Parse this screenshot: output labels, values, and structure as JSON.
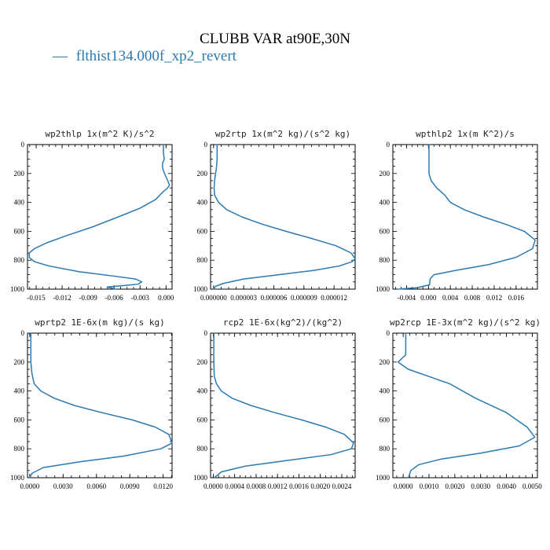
{
  "page": {
    "title": "CLUBB VAR at90E,30N",
    "legend": [
      {
        "marker": "—",
        "label": "flthist134.000f_xp2_revert",
        "color": "#2a7ab0"
      }
    ]
  },
  "colors": {
    "series": "#2a7ab0",
    "axes": "#000000"
  },
  "chart_data": [
    {
      "type": "line",
      "title": "wp2thlp  1x(m^2 K)/s^2",
      "xlim": [
        -0.016,
        0.0007
      ],
      "ylim": [
        1000,
        0
      ],
      "xticks": [
        -0.015,
        -0.012,
        -0.009,
        -0.006,
        -0.003,
        0.0
      ],
      "xtick_labels": [
        "-0.015",
        "-0.012",
        "-0.009",
        "-0.006",
        "-0.003",
        "0.000"
      ],
      "yticks": [
        0,
        200,
        400,
        600,
        800,
        1000
      ],
      "ytick_labels": [
        "0",
        "200",
        "400",
        "600",
        "800",
        "1000"
      ],
      "series": [
        {
          "x": [
            -0.0003,
            -0.0003,
            -0.0002,
            -0.0004,
            -0.0004,
            -0.0003,
            -0.0001,
            0.0002,
            0.0004,
            0.0002,
            -0.0004,
            -0.0012,
            -0.003,
            -0.0055,
            -0.0085,
            -0.0115,
            -0.0138,
            -0.0152,
            -0.0158,
            -0.0158,
            -0.0152,
            -0.0135,
            -0.01,
            -0.006,
            -0.0035,
            -0.0028,
            -0.0032,
            -0.0048,
            -0.0068,
            -0.0058
          ],
          "y": [
            0,
            60,
            100,
            130,
            160,
            180,
            210,
            250,
            280,
            300,
            330,
            380,
            440,
            500,
            570,
            630,
            680,
            720,
            750,
            780,
            810,
            840,
            880,
            910,
            930,
            950,
            965,
            975,
            985,
            1000
          ]
        }
      ]
    },
    {
      "type": "line",
      "title": "wp2rtp  1x(m^2 kg)/(s^2 kg)",
      "xlim": [
        -3e-07,
        1.41e-05
      ],
      "ylim": [
        1000,
        0
      ],
      "xticks": [
        0.0,
        3e-06,
        6e-06,
        9e-06,
        1.2e-05
      ],
      "xtick_labels": [
        "0.000000",
        "0.000003",
        "0.000006",
        "0.000009",
        "0.000012"
      ],
      "yticks": [
        0,
        200,
        400,
        600,
        800,
        1000
      ],
      "ytick_labels": [
        "0",
        "200",
        "400",
        "600",
        "800",
        "1000"
      ],
      "series": [
        {
          "x": [
            3.5e-07,
            3.5e-07,
            3e-07,
            2e-07,
            1e-07,
            5e-08,
            1e-07,
            5e-07,
            1.3e-06,
            2.8e-06,
            4.8e-06,
            7.2e-06,
            9.8e-06,
            1.22e-05,
            1.37e-05,
            1.41e-05,
            1.38e-05,
            1.25e-05,
            1e-05,
            6.5e-06,
            3e-06,
            1e-06,
            2e-07,
            0.0
          ],
          "y": [
            0,
            100,
            150,
            200,
            250,
            300,
            350,
            400,
            450,
            500,
            550,
            600,
            650,
            700,
            750,
            790,
            810,
            840,
            870,
            900,
            930,
            960,
            980,
            1000
          ]
        }
      ]
    },
    {
      "type": "line",
      "title": "wpthlp2  1x(m K^2)/s",
      "xlim": [
        -0.0065,
        0.0199
      ],
      "ylim": [
        1000,
        0
      ],
      "xticks": [
        -0.004,
        0.0,
        0.004,
        0.008,
        0.012,
        0.016
      ],
      "xtick_labels": [
        "-0.004",
        "0.000",
        "0.004",
        "0.008",
        "0.012",
        "0.016"
      ],
      "yticks": [
        0,
        200,
        400,
        600,
        800,
        1000
      ],
      "ytick_labels": [
        "0",
        "200",
        "400",
        "600",
        "800",
        "1000"
      ],
      "series": [
        {
          "x": [
            0.0001,
            0.0001,
            0.0001,
            0.0005,
            0.0015,
            0.003,
            0.004,
            0.0065,
            0.01,
            0.014,
            0.0175,
            0.0195,
            0.019,
            0.016,
            0.011,
            0.005,
            0.001,
            0.0003,
            0.0002,
            -0.002,
            -0.0055
          ],
          "y": [
            0,
            100,
            200,
            250,
            300,
            350,
            400,
            450,
            500,
            550,
            600,
            660,
            720,
            780,
            830,
            870,
            900,
            930,
            970,
            990,
            1000
          ]
        }
      ]
    },
    {
      "type": "line",
      "title": "wprtp2  1E-6x(m kg)/(s kg)",
      "xlim": [
        -0.0002,
        0.0128
      ],
      "ylim": [
        1000,
        0
      ],
      "xticks": [
        0.0,
        0.003,
        0.006,
        0.009,
        0.012
      ],
      "xtick_labels": [
        "0.0000",
        "0.0030",
        "0.0060",
        "0.0090",
        "0.0120"
      ],
      "yticks": [
        0,
        200,
        400,
        600,
        800,
        1000
      ],
      "ytick_labels": [
        "0",
        "200",
        "400",
        "600",
        "800",
        "1000"
      ],
      "series": [
        {
          "x": [
            0.0001,
            0.0001,
            0.0001,
            0.0002,
            0.0004,
            0.001,
            0.0022,
            0.004,
            0.0065,
            0.0092,
            0.0113,
            0.0125,
            0.0128,
            0.0118,
            0.0085,
            0.0045,
            0.0012,
            0.0002,
            0.0
          ],
          "y": [
            0,
            100,
            200,
            280,
            350,
            400,
            450,
            500,
            550,
            600,
            650,
            700,
            760,
            800,
            850,
            890,
            930,
            970,
            1000
          ]
        }
      ]
    },
    {
      "type": "line",
      "title": "rcp2  1E-6x(kg^2)/(kg^2)",
      "xlim": [
        -5e-05,
        0.00265
      ],
      "ylim": [
        1000,
        0
      ],
      "xticks": [
        0.0,
        0.0004,
        0.0008,
        0.0012,
        0.0016,
        0.002,
        0.0024
      ],
      "xtick_labels": [
        "0.0000",
        "0.0004",
        "0.0008",
        "0.0012",
        "0.0016",
        "0.0020",
        "0.0024"
      ],
      "yticks": [
        0,
        200,
        400,
        600,
        800,
        1000
      ],
      "ytick_labels": [
        "0",
        "200",
        "400",
        "600",
        "800",
        "1000"
      ],
      "series": [
        {
          "x": [
            1e-05,
            1e-05,
            1e-05,
            2e-05,
            6e-05,
            0.00015,
            0.00035,
            0.0007,
            0.00115,
            0.00165,
            0.0021,
            0.00245,
            0.00262,
            0.00258,
            0.0022,
            0.0014,
            0.0006,
            0.00015,
            2e-05
          ],
          "y": [
            0,
            100,
            200,
            300,
            350,
            400,
            450,
            500,
            550,
            600,
            650,
            700,
            760,
            800,
            840,
            880,
            920,
            960,
            1000
          ]
        }
      ]
    },
    {
      "type": "line",
      "title": "wp2rcp  1E-3x(m^2 kg)/(s^2 kg)",
      "xlim": [
        -0.0004,
        0.0052
      ],
      "ylim": [
        1000,
        0
      ],
      "xticks": [
        0.0,
        0.001,
        0.002,
        0.003,
        0.004,
        0.005
      ],
      "xtick_labels": [
        "0.0000",
        "0.0010",
        "0.0020",
        "0.0030",
        "0.0040",
        "0.0050"
      ],
      "yticks": [
        0,
        200,
        400,
        600,
        800,
        1000
      ],
      "ytick_labels": [
        "0",
        "200",
        "400",
        "600",
        "800",
        "1000"
      ],
      "series": [
        {
          "x": [
            0.0001,
            0.0001,
            0.0001,
            -0.0002,
            0.0002,
            0.001,
            0.0018,
            0.0028,
            0.004,
            0.0048,
            0.0051,
            0.0045,
            0.003,
            0.0015,
            0.0006,
            0.0003,
            0.0002
          ],
          "y": [
            0,
            100,
            150,
            200,
            250,
            300,
            350,
            450,
            550,
            650,
            720,
            780,
            830,
            870,
            910,
            950,
            1000
          ]
        }
      ]
    }
  ]
}
